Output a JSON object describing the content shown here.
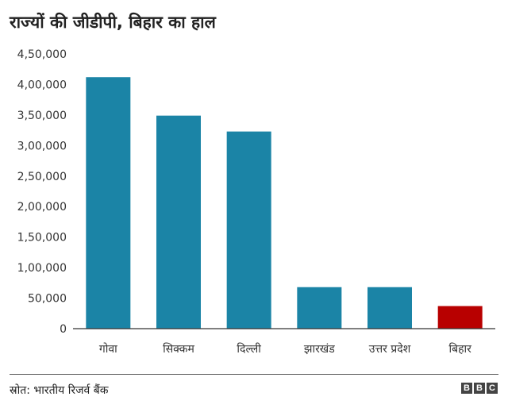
{
  "chart_data": {
    "type": "bar",
    "title": "राज्यों की जीडीपी, बिहार का हाल",
    "categories": [
      "गोवा",
      "सिक्कम",
      "दिल्ली",
      "झारखंड",
      "उत्तर प्रदेश",
      "बिहार"
    ],
    "values": [
      412000,
      349000,
      323000,
      68000,
      68000,
      37000
    ],
    "ylim": [
      0,
      450000
    ],
    "yticks": [
      {
        "value": 0,
        "label": "0"
      },
      {
        "value": 50000,
        "label": "50,000"
      },
      {
        "value": 100000,
        "label": "1,00,000"
      },
      {
        "value": 150000,
        "label": "1,50,000"
      },
      {
        "value": 200000,
        "label": "2,00,000"
      },
      {
        "value": 250000,
        "label": "2,50,000"
      },
      {
        "value": 300000,
        "label": "3,00,000"
      },
      {
        "value": 350000,
        "label": "3,50,000"
      },
      {
        "value": 400000,
        "label": "4,00,000"
      },
      {
        "value": 450000,
        "label": "4,50,000"
      }
    ],
    "bar_color": "#1b84a6",
    "highlight_color": "#b80000",
    "highlight_index": 5,
    "grid": false,
    "legend": "none"
  },
  "footer": {
    "source": "स्रोत: भारतीय रिजर्व बैंक",
    "logo": [
      "B",
      "B",
      "C"
    ]
  }
}
